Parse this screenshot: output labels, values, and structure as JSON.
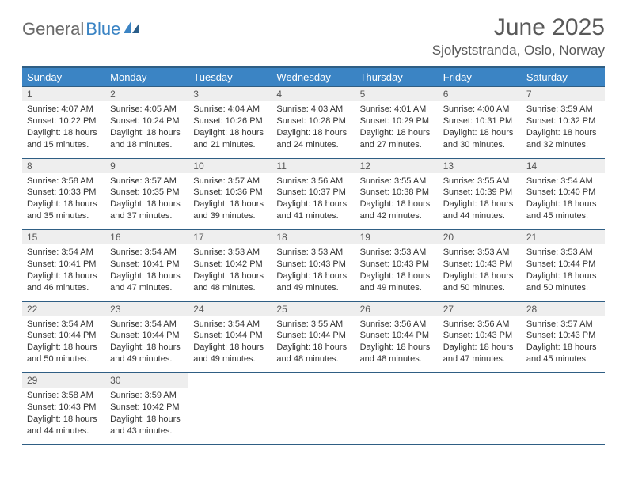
{
  "logo": {
    "word1": "General",
    "word2": "Blue"
  },
  "title": "June 2025",
  "location": "Sjolyststranda, Oslo, Norway",
  "colors": {
    "header_bg": "#3b84c4",
    "header_rule": "#2f5e84",
    "daynum_bg": "#eeeeee",
    "text": "#333333",
    "title_text": "#595959"
  },
  "weekdays": [
    "Sunday",
    "Monday",
    "Tuesday",
    "Wednesday",
    "Thursday",
    "Friday",
    "Saturday"
  ],
  "weeks": [
    [
      {
        "day": "1",
        "sunrise": "4:07 AM",
        "sunset": "10:22 PM",
        "daylight": "18 hours and 15 minutes."
      },
      {
        "day": "2",
        "sunrise": "4:05 AM",
        "sunset": "10:24 PM",
        "daylight": "18 hours and 18 minutes."
      },
      {
        "day": "3",
        "sunrise": "4:04 AM",
        "sunset": "10:26 PM",
        "daylight": "18 hours and 21 minutes."
      },
      {
        "day": "4",
        "sunrise": "4:03 AM",
        "sunset": "10:28 PM",
        "daylight": "18 hours and 24 minutes."
      },
      {
        "day": "5",
        "sunrise": "4:01 AM",
        "sunset": "10:29 PM",
        "daylight": "18 hours and 27 minutes."
      },
      {
        "day": "6",
        "sunrise": "4:00 AM",
        "sunset": "10:31 PM",
        "daylight": "18 hours and 30 minutes."
      },
      {
        "day": "7",
        "sunrise": "3:59 AM",
        "sunset": "10:32 PM",
        "daylight": "18 hours and 32 minutes."
      }
    ],
    [
      {
        "day": "8",
        "sunrise": "3:58 AM",
        "sunset": "10:33 PM",
        "daylight": "18 hours and 35 minutes."
      },
      {
        "day": "9",
        "sunrise": "3:57 AM",
        "sunset": "10:35 PM",
        "daylight": "18 hours and 37 minutes."
      },
      {
        "day": "10",
        "sunrise": "3:57 AM",
        "sunset": "10:36 PM",
        "daylight": "18 hours and 39 minutes."
      },
      {
        "day": "11",
        "sunrise": "3:56 AM",
        "sunset": "10:37 PM",
        "daylight": "18 hours and 41 minutes."
      },
      {
        "day": "12",
        "sunrise": "3:55 AM",
        "sunset": "10:38 PM",
        "daylight": "18 hours and 42 minutes."
      },
      {
        "day": "13",
        "sunrise": "3:55 AM",
        "sunset": "10:39 PM",
        "daylight": "18 hours and 44 minutes."
      },
      {
        "day": "14",
        "sunrise": "3:54 AM",
        "sunset": "10:40 PM",
        "daylight": "18 hours and 45 minutes."
      }
    ],
    [
      {
        "day": "15",
        "sunrise": "3:54 AM",
        "sunset": "10:41 PM",
        "daylight": "18 hours and 46 minutes."
      },
      {
        "day": "16",
        "sunrise": "3:54 AM",
        "sunset": "10:41 PM",
        "daylight": "18 hours and 47 minutes."
      },
      {
        "day": "17",
        "sunrise": "3:53 AM",
        "sunset": "10:42 PM",
        "daylight": "18 hours and 48 minutes."
      },
      {
        "day": "18",
        "sunrise": "3:53 AM",
        "sunset": "10:43 PM",
        "daylight": "18 hours and 49 minutes."
      },
      {
        "day": "19",
        "sunrise": "3:53 AM",
        "sunset": "10:43 PM",
        "daylight": "18 hours and 49 minutes."
      },
      {
        "day": "20",
        "sunrise": "3:53 AM",
        "sunset": "10:43 PM",
        "daylight": "18 hours and 50 minutes."
      },
      {
        "day": "21",
        "sunrise": "3:53 AM",
        "sunset": "10:44 PM",
        "daylight": "18 hours and 50 minutes."
      }
    ],
    [
      {
        "day": "22",
        "sunrise": "3:54 AM",
        "sunset": "10:44 PM",
        "daylight": "18 hours and 50 minutes."
      },
      {
        "day": "23",
        "sunrise": "3:54 AM",
        "sunset": "10:44 PM",
        "daylight": "18 hours and 49 minutes."
      },
      {
        "day": "24",
        "sunrise": "3:54 AM",
        "sunset": "10:44 PM",
        "daylight": "18 hours and 49 minutes."
      },
      {
        "day": "25",
        "sunrise": "3:55 AM",
        "sunset": "10:44 PM",
        "daylight": "18 hours and 48 minutes."
      },
      {
        "day": "26",
        "sunrise": "3:56 AM",
        "sunset": "10:44 PM",
        "daylight": "18 hours and 48 minutes."
      },
      {
        "day": "27",
        "sunrise": "3:56 AM",
        "sunset": "10:43 PM",
        "daylight": "18 hours and 47 minutes."
      },
      {
        "day": "28",
        "sunrise": "3:57 AM",
        "sunset": "10:43 PM",
        "daylight": "18 hours and 45 minutes."
      }
    ],
    [
      {
        "day": "29",
        "sunrise": "3:58 AM",
        "sunset": "10:43 PM",
        "daylight": "18 hours and 44 minutes."
      },
      {
        "day": "30",
        "sunrise": "3:59 AM",
        "sunset": "10:42 PM",
        "daylight": "18 hours and 43 minutes."
      },
      null,
      null,
      null,
      null,
      null
    ]
  ],
  "labels": {
    "sunrise_prefix": "Sunrise: ",
    "sunset_prefix": "Sunset: ",
    "daylight_prefix": "Daylight: "
  }
}
